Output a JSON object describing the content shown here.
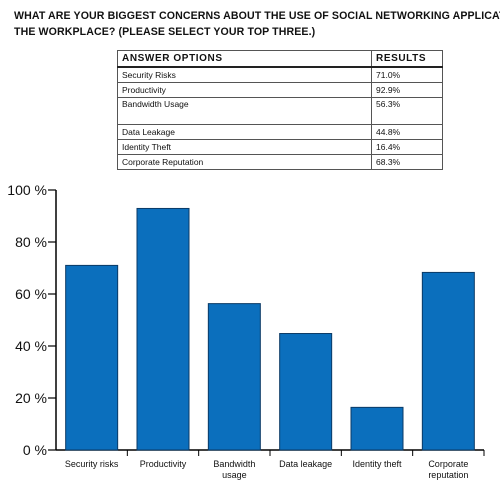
{
  "title_lines": [
    "WHAT ARE YOUR BIGGEST CONCERNS ABOUT THE USE OF SOCIAL NETWORKING APPLICATIONS IN",
    "THE WORKPLACE? (PLEASE SELECT YOUR TOP THREE.)"
  ],
  "table": {
    "headers": [
      "ANSWER OPTIONS",
      "RESULTS"
    ],
    "rows": [
      {
        "option": "Security Risks",
        "result": "71.0%"
      },
      {
        "option": "Productivity",
        "result": "92.9%"
      },
      {
        "option": "Bandwidth Usage",
        "result": "56.3%"
      },
      {
        "option": "Data Leakage",
        "result": "44.8%"
      },
      {
        "option": "Identity Theft",
        "result": "16.4%"
      },
      {
        "option": "Corporate Reputation",
        "result": "68.3%"
      }
    ]
  },
  "chart_data": {
    "type": "bar",
    "categories": [
      [
        "Security risks"
      ],
      [
        "Productivity"
      ],
      [
        "Bandwidth",
        "usage"
      ],
      [
        "Data leakage"
      ],
      [
        "Identity theft"
      ],
      [
        "Corporate",
        "reputation"
      ]
    ],
    "values": [
      71.0,
      92.9,
      56.3,
      44.8,
      16.4,
      68.3
    ],
    "ylim": [
      0,
      100
    ],
    "yticks": [
      0,
      20,
      40,
      60,
      80,
      100
    ],
    "ytick_labels": [
      "0 %",
      "20 %",
      "40 %",
      "60 %",
      "80 %",
      "100 %"
    ],
    "bar_color": "#0b6fbd",
    "bar_edge_color": "#0a3a66",
    "grid": false
  }
}
